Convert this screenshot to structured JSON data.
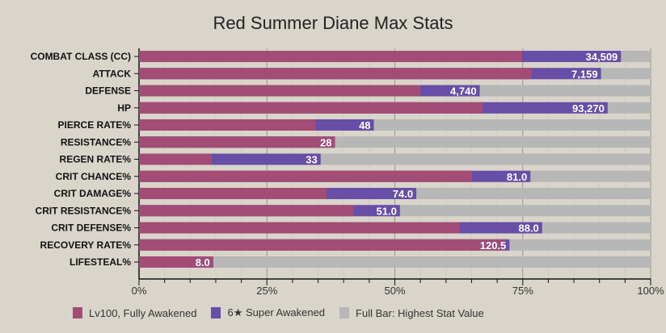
{
  "chart_data": {
    "type": "bar",
    "orientation": "horizontal",
    "stacked": true,
    "title": "Red Summer Diane Max Stats",
    "xlabel": "",
    "ylabel": "",
    "xlim": [
      0,
      100
    ],
    "x_ticks": [
      "0%",
      "25%",
      "50%",
      "75%",
      "100%"
    ],
    "categories": [
      "COMBAT CLASS (CC)",
      "ATTACK",
      "DEFENSE",
      "HP",
      "PIERCE RATE%",
      "RESISTANCE%",
      "REGEN RATE%",
      "CRIT CHANCE%",
      "CRIT DAMAGE%",
      "CRIT RESISTANCE%",
      "CRIT DEFENSE%",
      "RECOVERY RATE%",
      "LIFESTEAL%"
    ],
    "series": [
      {
        "name": "Lv100, Fully Awakened",
        "color": "#a34c75",
        "values": [
          74.9,
          76.7,
          55.0,
          67.2,
          34.5,
          38.3,
          14.2,
          65.1,
          36.7,
          41.9,
          62.7,
          71.7,
          14.5
        ]
      },
      {
        "name": "6★ Super Awakened",
        "color": "#674ea7",
        "values_cumulative": [
          94.2,
          90.3,
          66.6,
          91.6,
          45.9,
          38.3,
          35.5,
          76.5,
          54.2,
          51.0,
          78.8,
          72.4,
          14.5
        ]
      },
      {
        "name": "Full Bar: Highest Stat Value",
        "color": "#b7b7b7",
        "values_cumulative": [
          100,
          100,
          100,
          100,
          100,
          100,
          100,
          100,
          100,
          100,
          100,
          100,
          100
        ]
      }
    ],
    "data_labels": [
      "34,509",
      "7,159",
      "4,740",
      "93,270",
      "48",
      "28",
      "33",
      "81.0",
      "74.0",
      "51.0",
      "88.0",
      "120.5",
      "8.0"
    ],
    "legend_position": "bottom",
    "grid": true
  }
}
